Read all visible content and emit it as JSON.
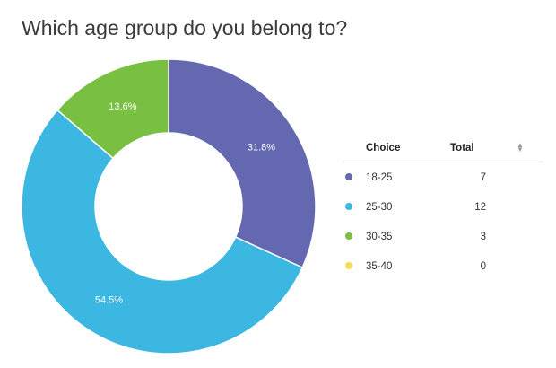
{
  "title": "Which age group do you belong to?",
  "chart_data": {
    "type": "pie",
    "title": "Which age group do you belong to?",
    "categories": [
      "18-25",
      "25-30",
      "30-35",
      "35-40"
    ],
    "values": [
      7,
      12,
      3,
      0
    ],
    "percent_labels": [
      "31.8%",
      "54.5%",
      "13.6%",
      ""
    ],
    "colors": [
      "#6368b0",
      "#3bb7e1",
      "#79bf41",
      "#f3dc5b"
    ],
    "donut": true,
    "start": "top, clockwise"
  },
  "legend": {
    "headers": {
      "choice": "Choice",
      "total": "Total"
    },
    "sort_icon": "sort-icon",
    "rows": [
      {
        "label": "18-25",
        "total": "7",
        "color": "#6368b0"
      },
      {
        "label": "25-30",
        "total": "12",
        "color": "#3bb7e1"
      },
      {
        "label": "30-35",
        "total": "3",
        "color": "#79bf41"
      },
      {
        "label": "35-40",
        "total": "0",
        "color": "#f3dc5b"
      }
    ]
  }
}
